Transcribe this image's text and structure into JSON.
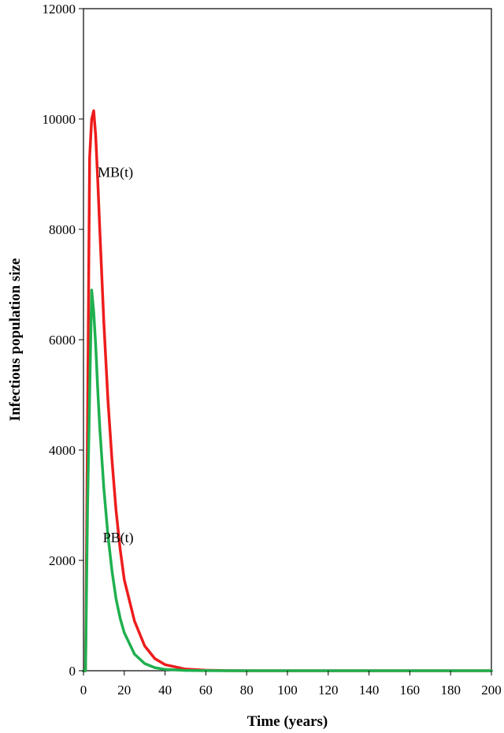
{
  "chart_data": {
    "type": "line",
    "title": "",
    "xlabel": "Time (years)",
    "ylabel": "Infectious population size",
    "xlim": [
      0,
      200
    ],
    "ylim": [
      0,
      12000
    ],
    "xticks": [
      0,
      20,
      40,
      60,
      80,
      100,
      120,
      140,
      160,
      180,
      200
    ],
    "yticks": [
      0,
      2000,
      4000,
      6000,
      8000,
      10000,
      12000
    ],
    "grid": false,
    "legend": "none",
    "series": [
      {
        "name": "MB(t)",
        "color": "#ee1c1c",
        "x": [
          0,
          1,
          2,
          3,
          4,
          5,
          6,
          7,
          8,
          10,
          12,
          14,
          16,
          18,
          20,
          25,
          30,
          35,
          40,
          50,
          60,
          70,
          80,
          100,
          150,
          200
        ],
        "y": [
          0,
          0,
          4500,
          9300,
          10000,
          10150,
          9700,
          8900,
          8000,
          6300,
          4900,
          3800,
          2900,
          2200,
          1650,
          900,
          450,
          220,
          110,
          30,
          8,
          2,
          0,
          0,
          0,
          0
        ]
      },
      {
        "name": "PB(t)",
        "color": "#1fb04f",
        "x": [
          0,
          1,
          2,
          3,
          4,
          5,
          6,
          7,
          8,
          10,
          12,
          14,
          16,
          18,
          20,
          25,
          30,
          35,
          40,
          50,
          60,
          70,
          80,
          100,
          150,
          200
        ],
        "y": [
          0,
          0,
          3000,
          5000,
          6900,
          6500,
          5900,
          5100,
          4400,
          3300,
          2450,
          1800,
          1300,
          950,
          690,
          300,
          130,
          55,
          25,
          5,
          1,
          0,
          0,
          0,
          0,
          0
        ]
      }
    ],
    "annotations": [
      {
        "text": "MB(t)",
        "x": 7,
        "y": 8950
      },
      {
        "text": "PB(t)",
        "x": 9.5,
        "y": 2330
      }
    ]
  }
}
